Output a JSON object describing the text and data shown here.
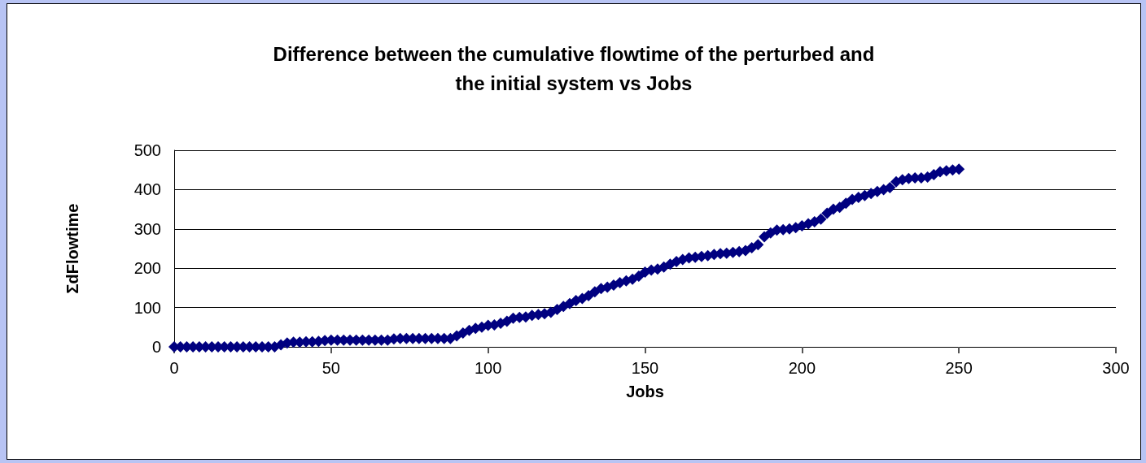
{
  "chart_data": {
    "type": "scatter",
    "title": "Difference between the cumulative flowtime of the perturbed and\nthe initial system vs Jobs",
    "xlabel": "Jobs",
    "ylabel": "ΣdFlowtime",
    "marker": "diamond",
    "grid": "y",
    "xlim": [
      0,
      300
    ],
    "xticks": [
      0,
      50,
      100,
      150,
      200,
      250,
      300
    ],
    "ylim": [
      0,
      500
    ],
    "yticks": [
      0,
      100,
      200,
      300,
      400,
      500
    ],
    "x": [
      0,
      2,
      4,
      6,
      8,
      10,
      12,
      14,
      16,
      18,
      20,
      22,
      24,
      26,
      28,
      30,
      32,
      34,
      36,
      38,
      40,
      42,
      44,
      46,
      48,
      50,
      52,
      54,
      56,
      58,
      60,
      62,
      64,
      66,
      68,
      70,
      72,
      74,
      76,
      78,
      80,
      82,
      84,
      86,
      88,
      90,
      92,
      94,
      96,
      98,
      100,
      102,
      104,
      106,
      108,
      110,
      112,
      114,
      116,
      118,
      120,
      122,
      124,
      126,
      128,
      130,
      132,
      134,
      136,
      138,
      140,
      142,
      144,
      146,
      148,
      150,
      152,
      154,
      156,
      158,
      160,
      162,
      164,
      166,
      168,
      170,
      172,
      174,
      176,
      178,
      180,
      182,
      184,
      186,
      188,
      190,
      192,
      194,
      196,
      198,
      200,
      202,
      204,
      206,
      208,
      210,
      212,
      214,
      216,
      218,
      220,
      222,
      224,
      226,
      228,
      230,
      232,
      234,
      236,
      238,
      240,
      242,
      244,
      246,
      248,
      250
    ],
    "series": [
      {
        "color": "#000080",
        "values": [
          0,
          0,
          0,
          0,
          0,
          0,
          0,
          0,
          0,
          0,
          0,
          0,
          0,
          0,
          0,
          0,
          0,
          5,
          10,
          12,
          12,
          13,
          13,
          14,
          16,
          17,
          17,
          17,
          17,
          17,
          17,
          17,
          17,
          17,
          17,
          20,
          21,
          21,
          21,
          21,
          21,
          21,
          21,
          21,
          21,
          28,
          35,
          42,
          47,
          50,
          55,
          56,
          60,
          65,
          73,
          75,
          76,
          80,
          82,
          84,
          88,
          95,
          103,
          110,
          118,
          123,
          130,
          140,
          148,
          152,
          157,
          163,
          168,
          172,
          180,
          190,
          195,
          198,
          203,
          210,
          217,
          222,
          226,
          228,
          230,
          232,
          235,
          237,
          238,
          240,
          242,
          245,
          252,
          260,
          280,
          290,
          297,
          298,
          300,
          303,
          308,
          313,
          318,
          325,
          340,
          350,
          355,
          365,
          375,
          380,
          385,
          390,
          395,
          400,
          405,
          420,
          425,
          428,
          430,
          430,
          432,
          438,
          445,
          448,
          450,
          452
        ]
      }
    ]
  }
}
